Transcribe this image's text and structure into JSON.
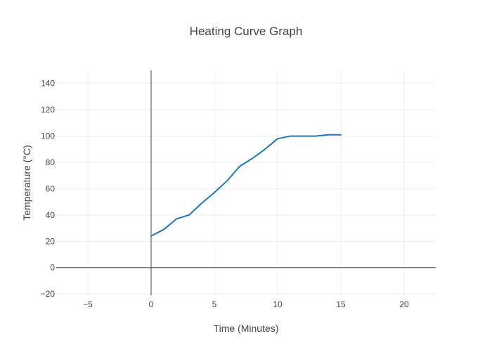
{
  "chart_data": {
    "type": "line",
    "title": "Heating Curve Graph",
    "xlabel": "Time (Minutes)",
    "ylabel": "Temperature (°C)",
    "xlim": [
      -7.5,
      22.5
    ],
    "ylim": [
      -21,
      150
    ],
    "xticks": [
      -5,
      0,
      5,
      10,
      15,
      20
    ],
    "xtick_labels": [
      "−5",
      "0",
      "5",
      "10",
      "15",
      "20"
    ],
    "yticks": [
      -20,
      0,
      20,
      40,
      60,
      80,
      100,
      120,
      140
    ],
    "ytick_labels": [
      "−20",
      "0",
      "20",
      "40",
      "60",
      "80",
      "100",
      "120",
      "140"
    ],
    "grid": true,
    "series": [
      {
        "color": "#1f77b4",
        "x": [
          0,
          1,
          2,
          3,
          4,
          5,
          6,
          7,
          8,
          9,
          10,
          11,
          12,
          13,
          14,
          15
        ],
        "y": [
          24,
          29,
          37,
          40,
          49,
          57,
          66,
          77,
          83,
          90,
          98,
          100,
          100,
          100,
          101,
          101
        ]
      }
    ],
    "colors": {
      "grid": "#eeeeee",
      "zeroline": "#444444",
      "text": "#444444"
    }
  }
}
